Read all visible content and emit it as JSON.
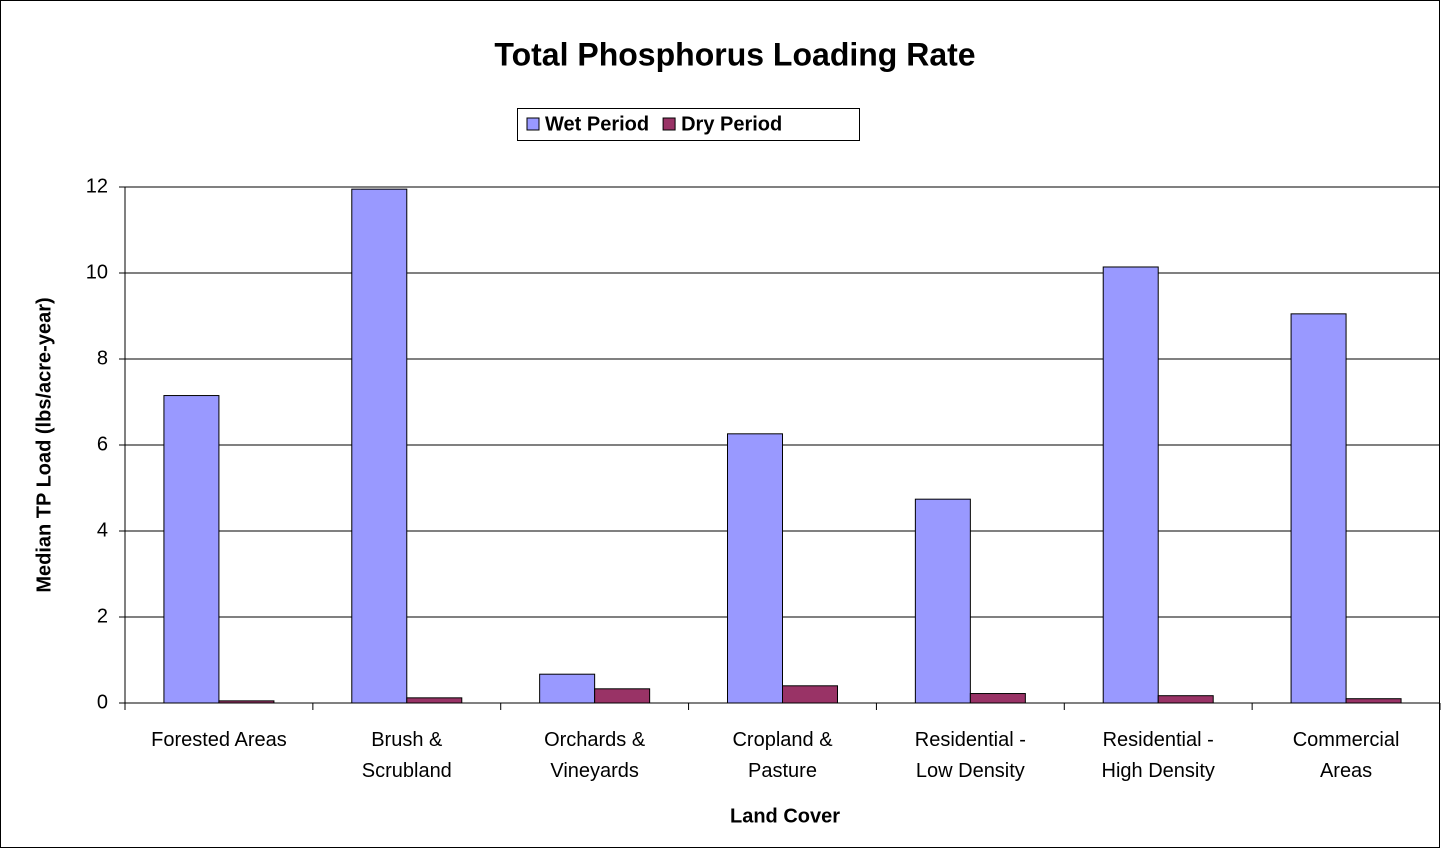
{
  "chart_data": {
    "type": "bar",
    "title": "Total Phosphorus Loading Rate",
    "x_label": "Land Cover",
    "y_label": "Median TP Load  (lbs/acre-year)",
    "categories": [
      "Forested Areas",
      "Brush &\nScrubland",
      "Orchards &\nVineyards",
      "Cropland &\nPasture",
      "Residential -\nLow Density",
      "Residential -\nHigh Density",
      "Commercial\nAreas"
    ],
    "series": [
      {
        "name": "Wet Period",
        "color": "#9999ff",
        "values": [
          7.15,
          11.95,
          0.67,
          6.26,
          4.74,
          10.14,
          9.05
        ]
      },
      {
        "name": "Dry Period",
        "color": "#993366",
        "values": [
          0.05,
          0.12,
          0.33,
          0.4,
          0.22,
          0.17,
          0.1
        ]
      }
    ],
    "ylim": [
      0,
      12
    ],
    "yticks": [
      0,
      2,
      4,
      6,
      8,
      10,
      12
    ],
    "grid": true,
    "legend": "top"
  }
}
